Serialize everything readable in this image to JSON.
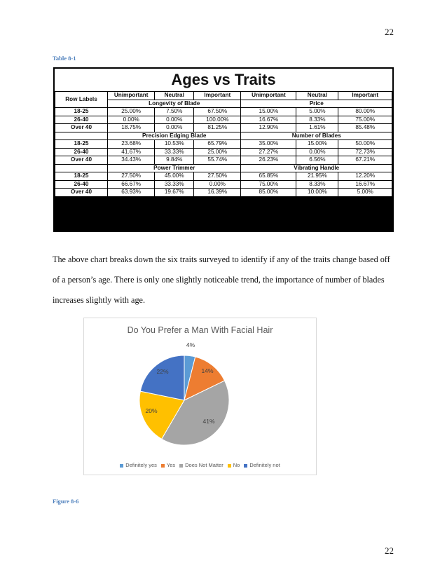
{
  "page_number_top": "22",
  "page_number_bottom": "22",
  "table_caption": "Table 8-1",
  "table": {
    "title": "Ages vs Traits",
    "row_labels_header": "Row Labels",
    "column_headers": [
      "Unimportant",
      "Neutral",
      "Important",
      "Unimportant",
      "Neutral",
      "Important"
    ],
    "groups": [
      {
        "left_section": "Longevity of Blade",
        "right_section": "Price",
        "rows": [
          {
            "label": "18-25",
            "values": [
              "25.00%",
              "7.50%",
              "67.50%",
              "15.00%",
              "5.00%",
              "80.00%"
            ]
          },
          {
            "label": "26-40",
            "values": [
              "0.00%",
              "0.00%",
              "100.00%",
              "16.67%",
              "8.33%",
              "75.00%"
            ]
          },
          {
            "label": "Over 40",
            "values": [
              "18.75%",
              "0.00%",
              "81.25%",
              "12.90%",
              "1.61%",
              "85.48%"
            ]
          }
        ]
      },
      {
        "left_section": "Precision Edging Blade",
        "right_section": "Number of Blades",
        "rows": [
          {
            "label": "18-25",
            "values": [
              "23.68%",
              "10.53%",
              "65.79%",
              "35.00%",
              "15.00%",
              "50.00%"
            ]
          },
          {
            "label": "26-40",
            "values": [
              "41.67%",
              "33.33%",
              "25.00%",
              "27.27%",
              "0.00%",
              "72.73%"
            ]
          },
          {
            "label": "Over 40",
            "values": [
              "34.43%",
              "9.84%",
              "55.74%",
              "26.23%",
              "6.56%",
              "67.21%"
            ]
          }
        ]
      },
      {
        "left_section": "Power Trimmer",
        "right_section": "Vibrating Handle",
        "rows": [
          {
            "label": "18-25",
            "values": [
              "27.50%",
              "45.00%",
              "27.50%",
              "65.85%",
              "21.95%",
              "12.20%"
            ]
          },
          {
            "label": "26-40",
            "values": [
              "66.67%",
              "33.33%",
              "0.00%",
              "75.00%",
              "8.33%",
              "16.67%"
            ]
          },
          {
            "label": "Over 40",
            "values": [
              "63.93%",
              "19.67%",
              "16.39%",
              "85.00%",
              "10.00%",
              "5.00%"
            ]
          }
        ]
      }
    ]
  },
  "paragraph": "The above chart breaks down the six traits surveyed to identify if any of the traits change based off of a person’s age. There is only one slightly noticeable trend, the importance of number of blades increases slightly with age.",
  "figure_caption": "Figure 8-6",
  "chart_data": {
    "type": "pie",
    "title": "Do You Prefer a Man With Facial Hair",
    "categories": [
      "Definitely yes",
      "Yes",
      "Does Not Matter",
      "No",
      "Definitely not"
    ],
    "values": [
      4,
      14,
      41,
      20,
      22
    ],
    "labels": [
      "4%",
      "14%",
      "41%",
      "20%",
      "22%"
    ],
    "colors": [
      "#5b9bd5",
      "#ed7d31",
      "#a5a5a5",
      "#ffc000",
      "#4472c4"
    ],
    "legend_position": "bottom"
  }
}
